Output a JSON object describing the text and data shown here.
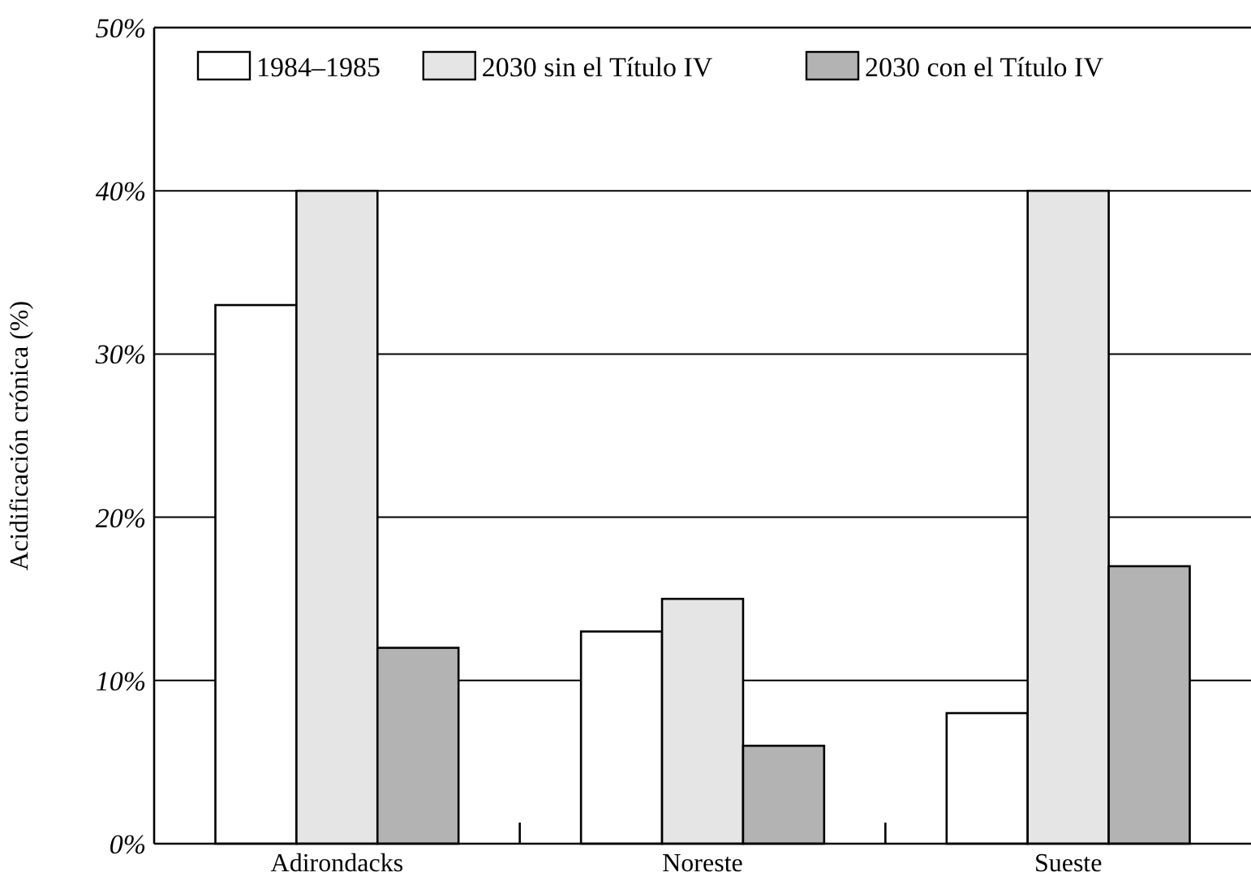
{
  "chart_data": {
    "type": "bar",
    "ylabel": "Acidificación crónica (%)",
    "categories": [
      "Adirondacks",
      "Noreste",
      "Sueste"
    ],
    "series": [
      {
        "name": "1984–1985",
        "color": "#ffffff",
        "values": [
          33,
          13,
          8
        ]
      },
      {
        "name": "2030 sin el Título IV",
        "color": "#e5e5e5",
        "values": [
          40,
          15,
          40
        ]
      },
      {
        "name": "2030 con el Título IV",
        "color": "#b3b3b3",
        "values": [
          12,
          6,
          17
        ]
      }
    ],
    "ylim": [
      0,
      50
    ],
    "yticks": [
      {
        "value": 0,
        "label": "0%"
      },
      {
        "value": 10,
        "label": "10%"
      },
      {
        "value": 20,
        "label": "20%"
      },
      {
        "value": 30,
        "label": "30%"
      },
      {
        "value": 40,
        "label": "40%"
      },
      {
        "value": 50,
        "label": "50%"
      }
    ],
    "grid": "y",
    "legend": "top"
  }
}
